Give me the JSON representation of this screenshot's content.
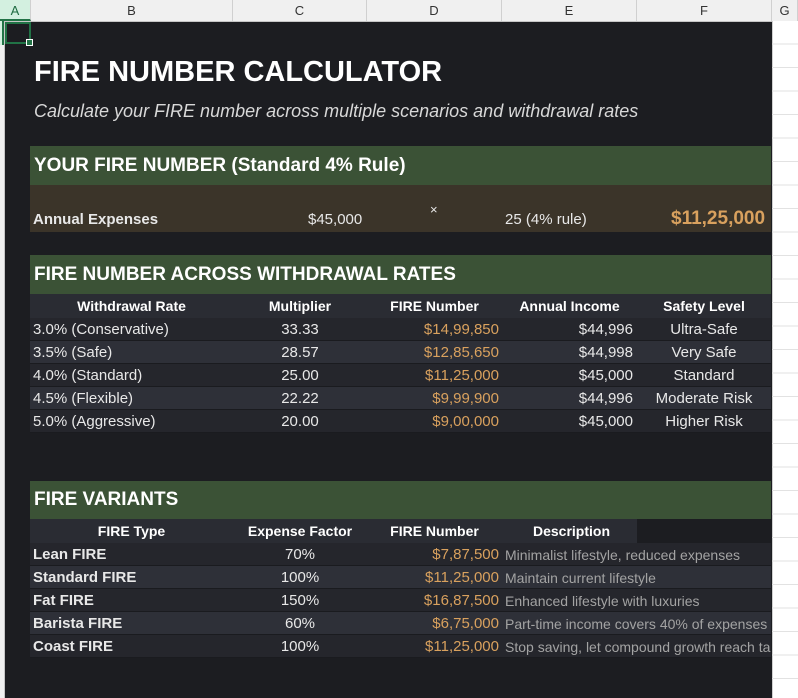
{
  "columns": [
    "A",
    "B",
    "C",
    "D",
    "E",
    "F",
    "G"
  ],
  "title": "FIRE NUMBER CALCULATOR",
  "subtitle": "Calculate your FIRE number across multiple scenarios and withdrawal rates",
  "standard": {
    "heading": "YOUR FIRE NUMBER (Standard 4% Rule)",
    "label": "Annual Expenses",
    "expenses": "$45,000",
    "times": "×",
    "multiplier": "25 (4% rule)",
    "result": "$11,25,000"
  },
  "rates": {
    "heading": "FIRE NUMBER ACROSS WITHDRAWAL RATES",
    "headers": [
      "Withdrawal Rate",
      "Multiplier",
      "FIRE Number",
      "Annual Income",
      "Safety Level"
    ],
    "rows": [
      [
        "3.0% (Conservative)",
        "33.33",
        "$14,99,850",
        "$44,996",
        "Ultra-Safe"
      ],
      [
        "3.5% (Safe)",
        "28.57",
        "$12,85,650",
        "$44,998",
        "Very Safe"
      ],
      [
        "4.0% (Standard)",
        "25.00",
        "$11,25,000",
        "$45,000",
        "Standard"
      ],
      [
        "4.5% (Flexible)",
        "22.22",
        "$9,99,900",
        "$44,996",
        "Moderate Risk"
      ],
      [
        "5.0% (Aggressive)",
        "20.00",
        "$9,00,000",
        "$45,000",
        "Higher Risk"
      ]
    ]
  },
  "variants": {
    "heading": "FIRE VARIANTS",
    "headers": [
      "FIRE Type",
      "Expense Factor",
      "FIRE Number",
      "Description"
    ],
    "rows": [
      [
        "Lean FIRE",
        "70%",
        "$7,87,500",
        "Minimalist lifestyle, reduced expenses"
      ],
      [
        "Standard FIRE",
        "100%",
        "$11,25,000",
        "Maintain current lifestyle"
      ],
      [
        "Fat FIRE",
        "150%",
        "$16,87,500",
        "Enhanced lifestyle with luxuries"
      ],
      [
        "Barista FIRE",
        "60%",
        "$6,75,000",
        "Part-time income covers 40% of expenses"
      ],
      [
        "Coast FIRE",
        "100%",
        "$11,25,000",
        "Stop saving, let compound growth reach ta"
      ]
    ]
  }
}
